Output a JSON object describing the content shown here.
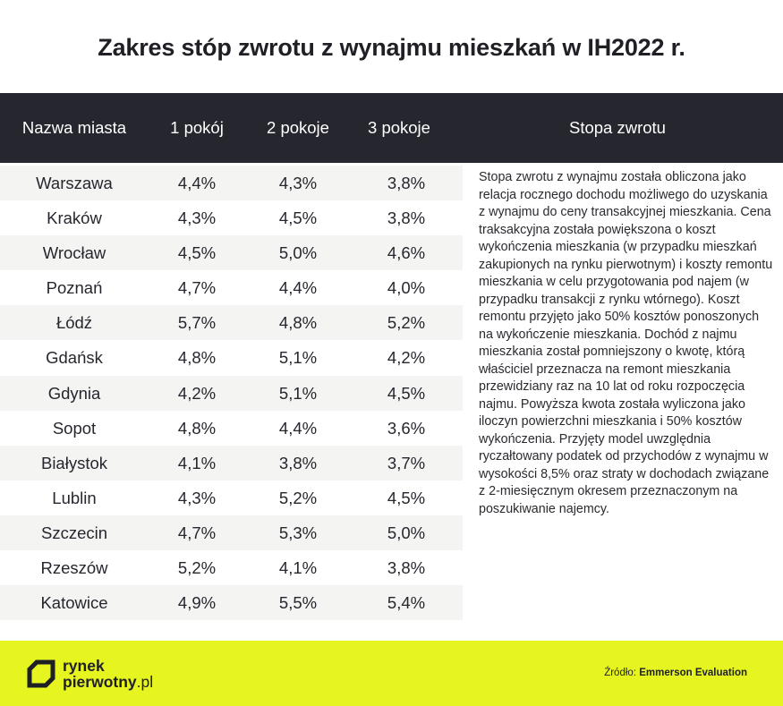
{
  "title": "Zakres stóp zwrotu z wynajmu mieszkań w IH2022 r.",
  "header": {
    "city": "Nazwa miasta",
    "room1": "1 pokój",
    "room2": "2 pokoje",
    "room3": "3 pokoje",
    "rate": "Stopa zwrotu"
  },
  "rows": [
    {
      "city": "Warszawa",
      "r1": "4,4%",
      "r2": "4,3%",
      "r3": "3,8%"
    },
    {
      "city": "Kraków",
      "r1": "4,3%",
      "r2": "4,5%",
      "r3": "3,8%"
    },
    {
      "city": "Wrocław",
      "r1": "4,5%",
      "r2": "5,0%",
      "r3": "4,6%"
    },
    {
      "city": "Poznań",
      "r1": "4,7%",
      "r2": "4,4%",
      "r3": "4,0%"
    },
    {
      "city": "Łódź",
      "r1": "5,7%",
      "r2": "4,8%",
      "r3": "5,2%"
    },
    {
      "city": "Gdańsk",
      "r1": "4,8%",
      "r2": "5,1%",
      "r3": "4,2%"
    },
    {
      "city": "Gdynia",
      "r1": "4,2%",
      "r2": "5,1%",
      "r3": "4,5%"
    },
    {
      "city": "Sopot",
      "r1": "4,8%",
      "r2": "4,4%",
      "r3": "3,6%"
    },
    {
      "city": "Białystok",
      "r1": "4,1%",
      "r2": "3,8%",
      "r3": "3,7%"
    },
    {
      "city": "Lublin",
      "r1": "4,3%",
      "r2": "5,2%",
      "r3": "4,5%"
    },
    {
      "city": "Szczecin",
      "r1": "4,7%",
      "r2": "5,3%",
      "r3": "5,0%"
    },
    {
      "city": "Rzeszów",
      "r1": "5,2%",
      "r2": "4,1%",
      "r3": "3,8%"
    },
    {
      "city": "Katowice",
      "r1": "4,9%",
      "r2": "5,5%",
      "r3": "5,4%"
    }
  ],
  "description": "Stopa zwrotu z wynajmu została obliczona jako relacja rocznego dochodu możliwego do uzyskania z wynajmu do ceny transakcyjnej mieszkania. Cena traksakcyjna została powiększona o koszt wykończenia mieszkania (w przypadku mieszkań zakupionych na rynku pierwotnym) i koszty remontu mieszkania w celu przygotowania pod najem (w przypadku transakcji z rynku wtórnego). Koszt remontu przyjęto jako 50% kosztów ponoszonych na wykończenie mieszkania. Dochód z najmu mieszkania został pomniejszony o kwotę, którą właściciel przeznacza na remont mieszkania przewidziany raz na 10 lat od roku rozpoczęcia najmu. Powyższa kwota została wyliczona jako iloczyn powierzchni mieszkania i 50% kosztów wykończenia. Przyjęty model uwzględnia ryczałtowany podatek od przychodów z wynajmu w wysokości 8,5% oraz straty w dochodach związane z 2-miesięcznym okresem przeznaczonym na poszukiwanie najemcy.",
  "footer": {
    "logo_line1": "rynek",
    "logo_line2": "pierwotny",
    "logo_tld": ".pl",
    "source_label": "Źródło:",
    "source_name": "Emmerson Evaluation"
  },
  "colors": {
    "header_bg": "#26262e",
    "footer_bg": "#e6f51f",
    "row_shade": "#f4f4f2"
  }
}
